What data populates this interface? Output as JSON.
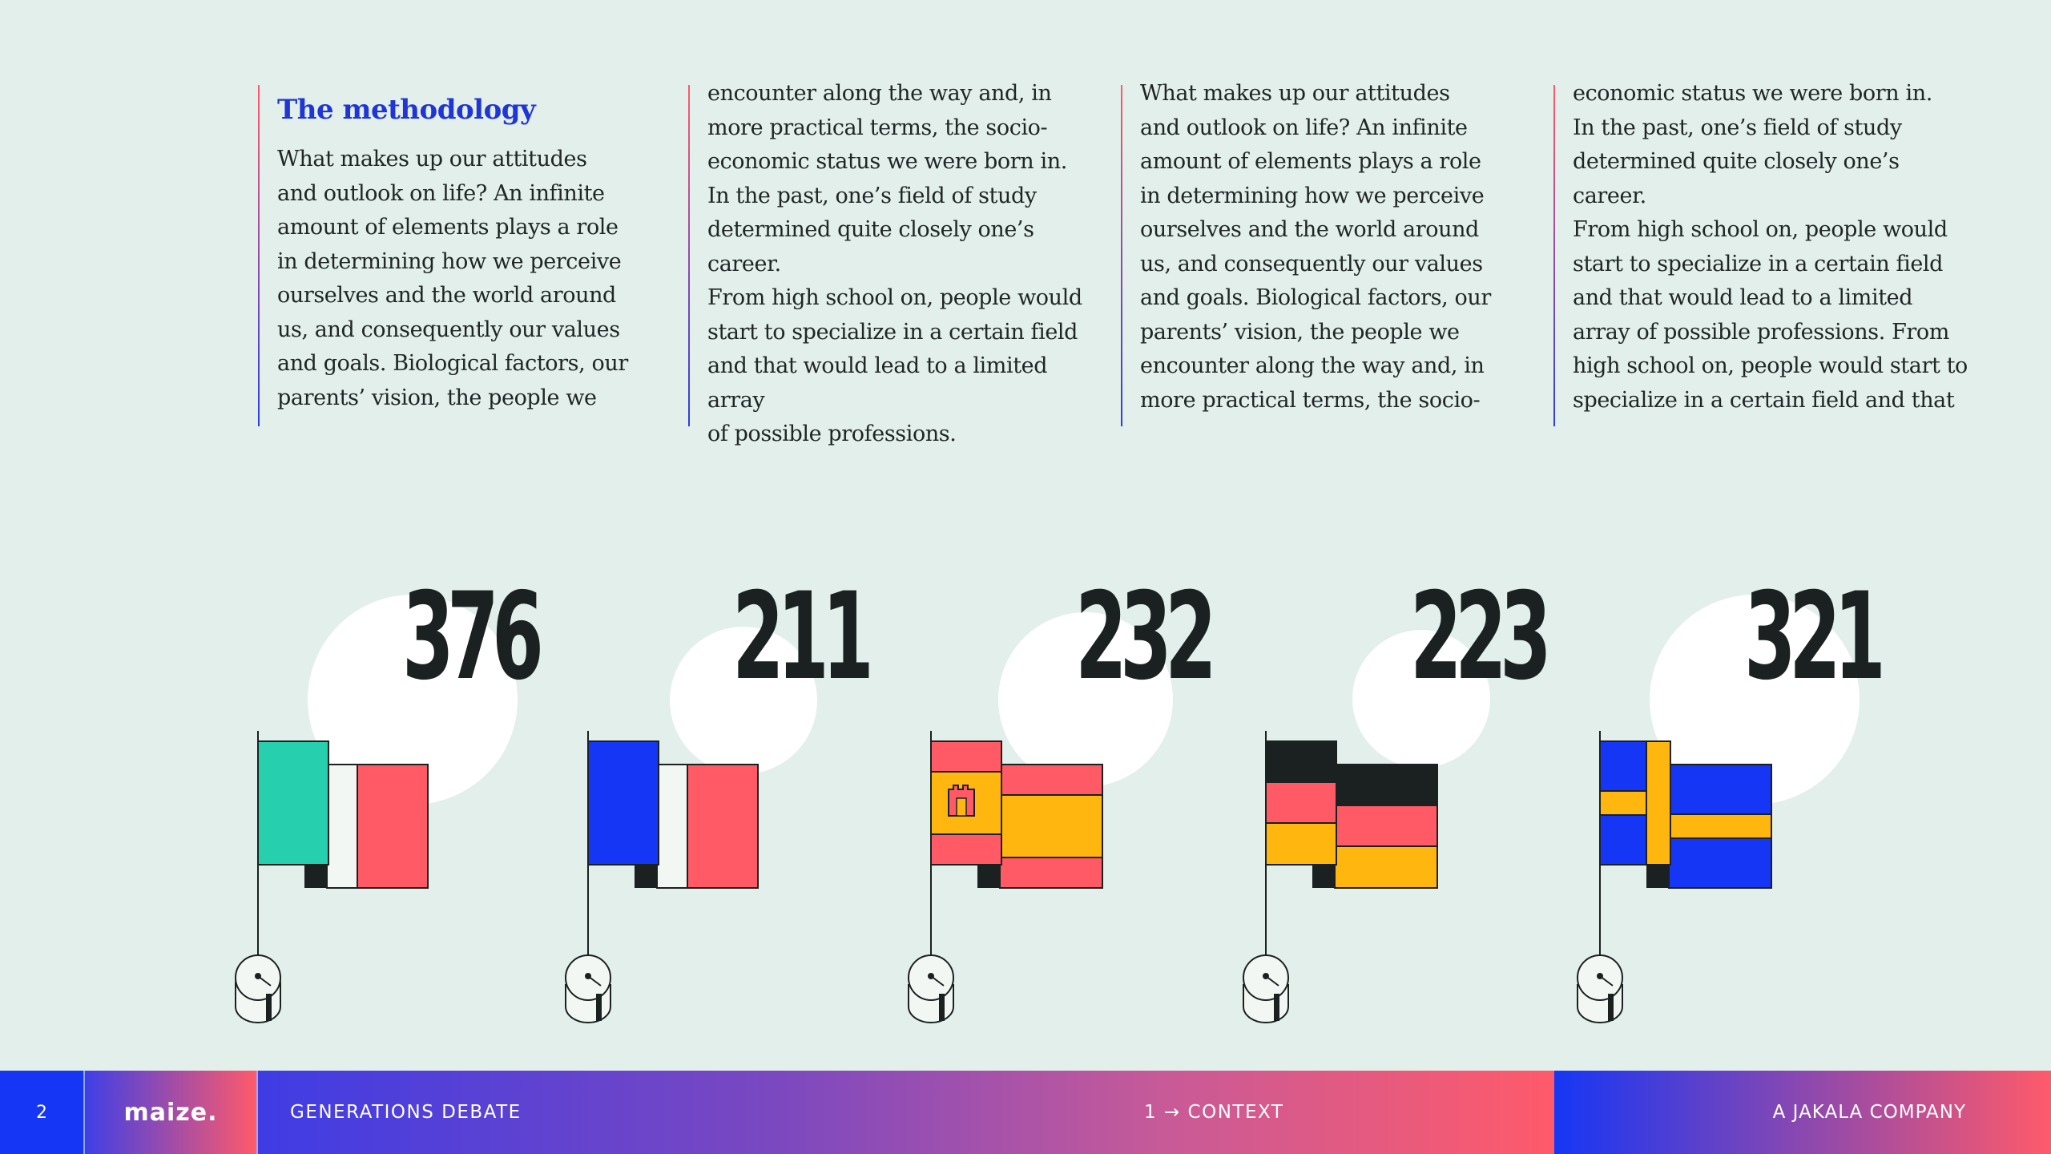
{
  "columns": [
    {
      "title": "The methodology",
      "text": "What makes up our attitudes\nand outlook on life? An infinite\namount of elements plays a role\nin determining how we perceive\nourselves and the world around\nus, and consequently our values\nand goals. Biological factors, our\nparents’ vision, the people we"
    },
    {
      "text": "encounter along the way and, in\nmore practical terms, the socio-\neconomic status we were born in.\n    In the past, one’s field of study\ndetermined quite closely one’s career.\nFrom high school on, people would\nstart to specialize in a certain field\nand that would lead to a limited array\nof possible professions."
    },
    {
      "text": "What makes up our attitudes\nand outlook on life? An infinite\namount of elements plays a role\nin determining how we perceive\nourselves and the world around\nus, and consequently our values\nand goals. Biological factors, our\nparents’ vision, the people we\nencounter along the way and, in\nmore practical terms, the socio-"
    },
    {
      "text": "economic status we were born in.\n    In the past, one’s field of study\ndetermined quite closely one’s career.\nFrom high school on, people would\nstart to specialize in a certain field\nand that would lead to a limited\narray of possible professions. From\nhigh school on, people would start to\nspecialize in a certain field and that"
    }
  ],
  "stats": [
    {
      "value": "376",
      "flag": "italy-flag-icon",
      "colors": [
        "#26cfae",
        "#f2f7f4",
        "#ff5a65"
      ]
    },
    {
      "value": "211",
      "flag": "france-flag-icon",
      "colors": [
        "#1636f5",
        "#f2f7f4",
        "#ff5a65"
      ]
    },
    {
      "value": "232",
      "flag": "spain-flag-icon",
      "colors": [
        "#ff5a65",
        "#ffb70f",
        "#ff5a65"
      ]
    },
    {
      "value": "223",
      "flag": "germany-flag-icon",
      "colors": [
        "#1b2121",
        "#ff5a65",
        "#ffb70f"
      ]
    },
    {
      "value": "321",
      "flag": "sweden-flag-icon",
      "colors": [
        "#1636f5",
        "#ffb70f"
      ]
    }
  ],
  "footer": {
    "page_number": "2",
    "logo": "maize.",
    "title": "GENERATIONS DEBATE",
    "chapter": "1 → CONTEXT",
    "company": "A JAKALA COMPANY"
  },
  "theme": {
    "background": "#e2efea",
    "accent_blue": "#1f35d6",
    "accent_red": "#ff5a65"
  }
}
